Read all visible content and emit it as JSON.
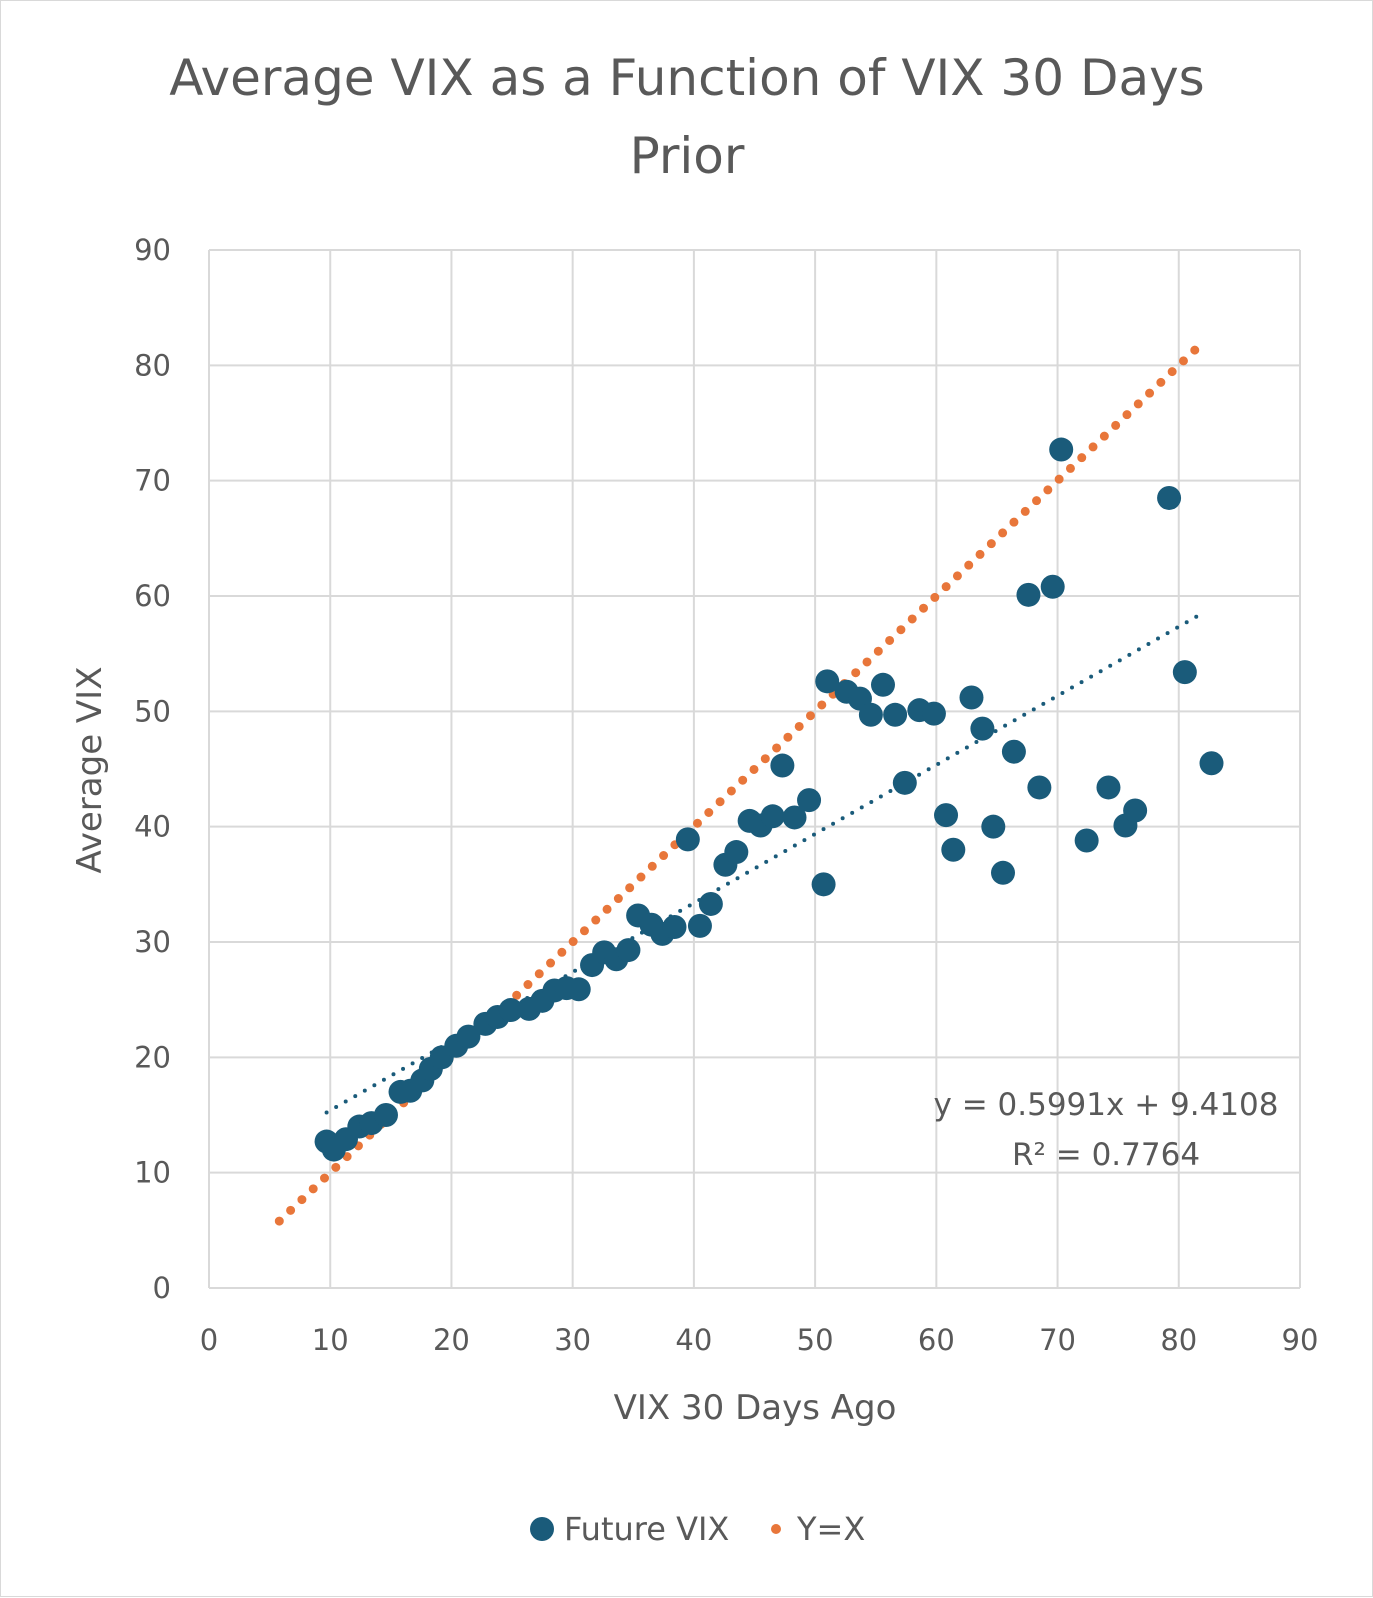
{
  "chart_data": {
    "type": "scatter",
    "title_lines": [
      "Average VIX as a Function of VIX 30 Days",
      "Prior"
    ],
    "xlabel": "VIX 30 Days Ago",
    "ylabel": "Average VIX",
    "xlim": [
      0,
      90
    ],
    "ylim": [
      0,
      90
    ],
    "x_ticks": [
      "0",
      "10",
      "20",
      "30",
      "40",
      "50",
      "60",
      "70",
      "80",
      "90"
    ],
    "y_ticks": [
      "0",
      "10",
      "20",
      "30",
      "40",
      "50",
      "60",
      "70",
      "80",
      "90"
    ],
    "grid": true,
    "legend_position": "bottom",
    "colors": {
      "future_vix": "#1a5b7a",
      "y_equals_x": "#e8763a",
      "text": "#595959",
      "grid": "#d9d9d9"
    },
    "series": [
      {
        "name": "Future VIX",
        "style": "marker",
        "points": [
          [
            9.7,
            12.7
          ],
          [
            10.3,
            12.0
          ],
          [
            11.3,
            12.9
          ],
          [
            12.4,
            14.0
          ],
          [
            13.4,
            14.3
          ],
          [
            14.6,
            15.0
          ],
          [
            15.8,
            17.0
          ],
          [
            16.6,
            17.1
          ],
          [
            17.6,
            18.0
          ],
          [
            18.3,
            19.0
          ],
          [
            19.2,
            20.0
          ],
          [
            20.4,
            21.0
          ],
          [
            21.4,
            21.8
          ],
          [
            22.8,
            22.9
          ],
          [
            23.8,
            23.5
          ],
          [
            24.9,
            24.1
          ],
          [
            26.4,
            24.2
          ],
          [
            27.5,
            24.9
          ],
          [
            28.5,
            25.8
          ],
          [
            29.5,
            26.0
          ],
          [
            30.5,
            25.9
          ],
          [
            31.6,
            28.0
          ],
          [
            32.6,
            29.1
          ],
          [
            33.6,
            28.5
          ],
          [
            34.6,
            29.3
          ],
          [
            35.4,
            32.3
          ],
          [
            36.5,
            31.5
          ],
          [
            37.4,
            30.7
          ],
          [
            38.4,
            31.3
          ],
          [
            39.5,
            38.9
          ],
          [
            40.5,
            31.4
          ],
          [
            41.4,
            33.3
          ],
          [
            42.6,
            36.7
          ],
          [
            43.5,
            37.8
          ],
          [
            44.6,
            40.5
          ],
          [
            45.5,
            40.1
          ],
          [
            46.5,
            40.9
          ],
          [
            47.3,
            45.3
          ],
          [
            48.3,
            40.8
          ],
          [
            49.5,
            42.3
          ],
          [
            50.7,
            35.0
          ],
          [
            51.0,
            52.6
          ],
          [
            52.6,
            51.7
          ],
          [
            53.7,
            51.1
          ],
          [
            54.6,
            49.7
          ],
          [
            55.6,
            52.3
          ],
          [
            56.6,
            49.7
          ],
          [
            57.4,
            43.8
          ],
          [
            58.6,
            50.1
          ],
          [
            59.8,
            49.8
          ],
          [
            60.8,
            41.0
          ],
          [
            61.4,
            38.0
          ],
          [
            62.9,
            51.2
          ],
          [
            63.8,
            48.5
          ],
          [
            64.7,
            40.0
          ],
          [
            65.5,
            36.0
          ],
          [
            66.4,
            46.5
          ],
          [
            67.6,
            60.1
          ],
          [
            68.5,
            43.4
          ],
          [
            69.6,
            60.8
          ],
          [
            70.3,
            72.7
          ],
          [
            72.4,
            38.8
          ],
          [
            74.2,
            43.4
          ],
          [
            75.6,
            40.1
          ],
          [
            76.4,
            41.4
          ],
          [
            79.2,
            68.5
          ],
          [
            80.5,
            53.4
          ],
          [
            82.7,
            45.5
          ]
        ]
      },
      {
        "name": "Y=X",
        "style": "dotted-line",
        "x_range": [
          5.8,
          82.2
        ]
      }
    ],
    "trendline": {
      "series": "Future VIX",
      "type": "linear",
      "x_range": [
        9.7,
        82.2
      ],
      "slope": 0.5991,
      "intercept": 9.4108,
      "equation_label": "y = 0.5991x + 9.4108",
      "r2_label": "R² = 0.7764"
    },
    "legend": [
      {
        "label": "Future VIX",
        "marker": "circle"
      },
      {
        "label": "Y=X",
        "marker": "dot"
      }
    ]
  }
}
